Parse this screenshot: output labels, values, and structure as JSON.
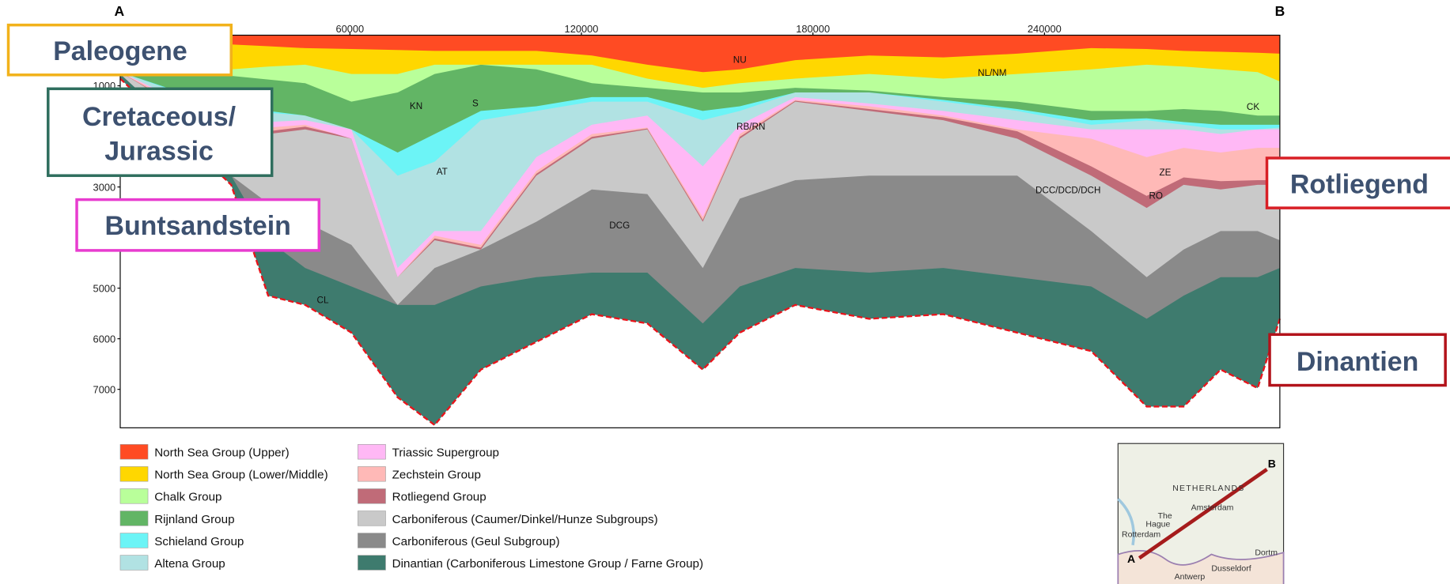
{
  "section": {
    "end_labels": [
      "A",
      "B"
    ],
    "xlim": [
      0,
      301000
    ],
    "xticks": [
      60000,
      120000,
      180000,
      240000
    ],
    "ylim": [
      0,
      7760
    ],
    "yticks": [
      1000,
      3000,
      5000,
      6000,
      7000
    ],
    "unit_labels": [
      "NU",
      "NL/NM",
      "CK",
      "KN",
      "S",
      "AT",
      "RB/RN",
      "DCG",
      "DCC/DCD/DCH",
      "ZE",
      "RO",
      "CL"
    ]
  },
  "legend": [
    {
      "label": "North Sea Group (Upper)",
      "color": "#ff4b23"
    },
    {
      "label": "North Sea Group (Lower/Middle)",
      "color": "#ffd700"
    },
    {
      "label": "Chalk Group",
      "color": "#b9ff9a"
    },
    {
      "label": "Rijnland Group",
      "color": "#62b565"
    },
    {
      "label": "Schieland Group",
      "color": "#6cf4f6"
    },
    {
      "label": "Altena Group",
      "color": "#b1e2e3"
    },
    {
      "label": "Triassic Supergroup",
      "color": "#ffb8f5"
    },
    {
      "label": "Zechstein Group",
      "color": "#ffb9b7"
    },
    {
      "label": "Rotliegend Group",
      "color": "#c06b78"
    },
    {
      "label": "Carboniferous (Caumer/Dinkel/Hunze Subgroups)",
      "color": "#c9c9c9"
    },
    {
      "label": "Carboniferous (Geul Subgroup)",
      "color": "#8a8a8a"
    },
    {
      "label": "Dinantian (Carboniferous Limestone Group / Farne Group)",
      "color": "#3e7b6e"
    }
  ],
  "callouts": [
    "Paleogene",
    "Cretaceous/",
    "Jurassic",
    "Buntsandstein",
    "Rotliegend",
    "Dinantien"
  ],
  "map": {
    "labels": [
      "B",
      "NETHERLANDS",
      "Amsterdam",
      "The",
      "Hague",
      "Rotterdam",
      "A",
      "Dusseldorf",
      "Antwerp",
      "Dortm"
    ]
  }
}
